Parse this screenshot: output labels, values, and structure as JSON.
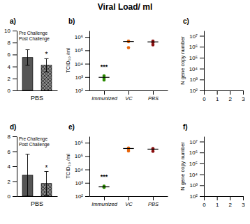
{
  "title": "Viral Load/ ml",
  "chart_data": [
    {
      "type": "bar",
      "panel_label": "a)",
      "xlabel": "PBS",
      "categories": [
        "Pre Challenge",
        "Post Challenge"
      ],
      "values": [
        5.5,
        4.2
      ],
      "errors": [
        1.3,
        1.1
      ],
      "colors": [
        "#555555",
        "#888888"
      ],
      "annotation": "*",
      "ylim": [
        0,
        10
      ],
      "yticks": [
        0,
        2,
        4,
        6,
        8,
        10
      ],
      "tick_labels": "y"
    },
    {
      "type": "scatter",
      "panel_label": "b)",
      "ylabel": "TCID₅₀ /ml",
      "categories": [
        "Immunized",
        "VC",
        "PBS"
      ],
      "series": [
        {
          "color": "#2a8a00",
          "values": [
            1250,
            800,
            600
          ],
          "median": 950
        },
        {
          "color": "#e8650a",
          "values": [
            490000,
            450000,
            160000
          ],
          "median": 460000
        },
        {
          "color": "#8b1010",
          "values": [
            490000,
            380000,
            260000
          ],
          "median": 430000
        }
      ],
      "annotation": "***",
      "log": "y",
      "ylim": [
        100,
        3000000
      ],
      "yticks": [
        {
          "value": 100,
          "label": "10²"
        },
        {
          "value": 1000,
          "label": "10³"
        },
        {
          "value": 10000,
          "label": "10⁴"
        },
        {
          "value": 100000,
          "label": "10⁵"
        },
        {
          "value": 1000000,
          "label": "10⁶"
        }
      ]
    },
    {
      "type": "scatter",
      "panel_label": "c)",
      "ylabel": "N gene copy number",
      "log": "y",
      "xlim": [
        0,
        3
      ],
      "xticks": [
        0,
        1,
        2,
        3
      ],
      "ylim": [
        100,
        30000000
      ],
      "yticks": [
        {
          "value": 100,
          "label": "10²"
        },
        {
          "value": 1000,
          "label": "10³"
        },
        {
          "value": 10000,
          "label": "10⁴"
        },
        {
          "value": 100000,
          "label": "10⁵"
        },
        {
          "value": 1000000,
          "label": "10⁶"
        },
        {
          "value": 10000000,
          "label": "10⁷"
        }
      ]
    },
    {
      "type": "bar",
      "panel_label": "d)",
      "xlabel": "PBS",
      "categories": [
        "Pre Challenge",
        "Post Challenge"
      ],
      "values": [
        2.8,
        1.7
      ],
      "errors": [
        2.8,
        1.6
      ],
      "colors": [
        "#555555",
        "#888888"
      ],
      "annotation": "*",
      "ylim": [
        0,
        8
      ],
      "yticks": [
        0,
        2,
        4,
        6,
        8
      ],
      "tick_labels": "y"
    },
    {
      "type": "scatter",
      "panel_label": "e)",
      "ylabel": "TCID₅₀ /ml",
      "categories": [
        "Immunized",
        "VC",
        "PBS"
      ],
      "series": [
        {
          "color": "#2a8a00",
          "values": [
            560,
            490,
            450
          ],
          "median": 500
        },
        {
          "color": "#e8650a",
          "values": [
            400000,
            360000,
            245000
          ],
          "median": 370000
        },
        {
          "color": "#8b1010",
          "values": [
            370000,
            320000,
            230000
          ],
          "median": 330000
        }
      ],
      "annotation": "***",
      "log": "y",
      "ylim": [
        100,
        3000000
      ],
      "yticks": [
        {
          "value": 100,
          "label": "10²"
        },
        {
          "value": 1000,
          "label": "10³"
        },
        {
          "value": 10000,
          "label": "10⁴"
        },
        {
          "value": 100000,
          "label": "10⁵"
        },
        {
          "value": 1000000,
          "label": "10⁶"
        }
      ]
    },
    {
      "type": "scatter",
      "panel_label": "f)",
      "ylabel": "N gene copy number",
      "log": "y",
      "xlim": [
        0,
        3
      ],
      "xticks": [
        0,
        1,
        2,
        3
      ],
      "ylim": [
        100,
        30000000
      ],
      "yticks": [
        {
          "value": 100,
          "label": "10²"
        },
        {
          "value": 1000,
          "label": "10³"
        },
        {
          "value": 10000,
          "label": "10⁴"
        },
        {
          "value": 100000,
          "label": "10⁵"
        },
        {
          "value": 1000000,
          "label": "10⁶"
        },
        {
          "value": 10000000,
          "label": "10⁷"
        }
      ]
    }
  ]
}
